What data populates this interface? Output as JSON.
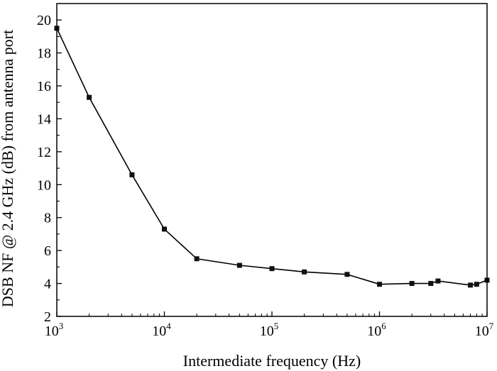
{
  "chart_data": {
    "type": "line",
    "xscale": "log",
    "xlabel": "Intermediate frequency (Hz)",
    "ylabel": "DSB NF @ 2.4 GHz (dB) from antenna port",
    "xlim": [
      1000,
      10000000
    ],
    "ylim": [
      2,
      21
    ],
    "xticks": [
      {
        "value": 1000,
        "base": "10",
        "exp": "3"
      },
      {
        "value": 10000,
        "base": "10",
        "exp": "4"
      },
      {
        "value": 100000,
        "base": "10",
        "exp": "5"
      },
      {
        "value": 1000000,
        "base": "10",
        "exp": "6"
      },
      {
        "value": 10000000,
        "base": "10",
        "exp": "7"
      }
    ],
    "yticks": [
      2,
      4,
      6,
      8,
      10,
      12,
      14,
      16,
      18,
      20
    ],
    "grid": false,
    "series": [
      {
        "x": [
          1000,
          2000,
          5000,
          10000,
          20000,
          50000,
          100000,
          200000,
          500000,
          1000000,
          2000000,
          3000000,
          3500000,
          7000000,
          8000000,
          10000000
        ],
        "y": [
          19.5,
          15.3,
          10.6,
          7.3,
          5.5,
          5.1,
          4.9,
          4.7,
          4.55,
          3.95,
          4.0,
          4.0,
          4.15,
          3.9,
          3.95,
          4.2
        ]
      }
    ]
  }
}
